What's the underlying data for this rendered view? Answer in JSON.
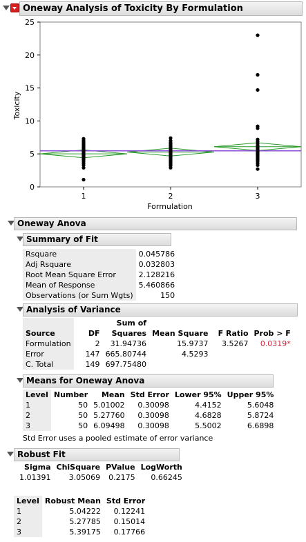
{
  "main_header": {
    "title": "Oneway Analysis of Toxicity By Formulation"
  },
  "chart_data": {
    "type": "scatter",
    "x_categories": [
      "1",
      "2",
      "3"
    ],
    "xlabel": "Formulation",
    "ylabel": "Toxicity",
    "y_ticks": [
      "0",
      "5",
      "10",
      "15",
      "20",
      "25"
    ],
    "ylim": [
      0,
      25
    ],
    "grand_mean": 5.460866,
    "groups": [
      {
        "name": "1",
        "mean": 5.01002,
        "lower95": 4.4152,
        "upper95": 5.6048,
        "points": [
          1.1,
          2.9,
          3.3,
          3.6,
          3.9,
          4.1,
          4.3,
          4.5,
          4.6,
          4.7,
          4.8,
          4.9,
          5.0,
          5.1,
          5.2,
          5.3,
          5.4,
          5.5,
          5.6,
          5.7,
          5.9,
          6.0,
          6.2,
          6.4,
          6.6,
          6.8,
          7.0,
          7.3
        ]
      },
      {
        "name": "2",
        "mean": 5.2776,
        "lower95": 4.6828,
        "upper95": 5.8724,
        "points": [
          2.9,
          3.2,
          3.4,
          3.6,
          3.8,
          4.0,
          4.2,
          4.4,
          4.5,
          4.6,
          4.7,
          4.8,
          4.9,
          5.0,
          5.1,
          5.2,
          5.3,
          5.4,
          5.5,
          5.6,
          5.7,
          5.8,
          5.9,
          6.1,
          6.3,
          6.5,
          6.7,
          7.0,
          7.4
        ]
      },
      {
        "name": "3",
        "mean": 6.09498,
        "lower95": 5.5002,
        "upper95": 6.6898,
        "points": [
          2.7,
          3.3,
          3.6,
          3.9,
          4.1,
          4.3,
          4.5,
          4.7,
          4.9,
          5.0,
          5.1,
          5.2,
          5.3,
          5.4,
          5.5,
          5.6,
          5.7,
          5.8,
          5.9,
          6.1,
          6.3,
          6.6,
          6.9,
          7.2,
          8.9,
          9.2,
          14.7,
          17.0,
          23.0
        ]
      }
    ]
  },
  "oneway_anova": {
    "title": "Oneway Anova"
  },
  "summary_of_fit": {
    "title": "Summary of Fit",
    "rows": [
      {
        "label": "Rsquare",
        "value": "0.045786"
      },
      {
        "label": "Adj Rsquare",
        "value": "0.032803"
      },
      {
        "label": "Root Mean Square Error",
        "value": "2.128216"
      },
      {
        "label": "Mean of Response",
        "value": "5.460866"
      },
      {
        "label": "Observations (or Sum Wgts)",
        "value": "150"
      }
    ]
  },
  "analysis_of_variance": {
    "title": "Analysis of Variance",
    "headers": {
      "source": "Source",
      "df": "DF",
      "ss_top": "Sum of",
      "ss_bottom": "Squares",
      "ms": "Mean Square",
      "f": "F Ratio",
      "p": "Prob > F"
    },
    "rows": [
      {
        "source": "Formulation",
        "df": "2",
        "ss": "31.94736",
        "ms": "15.9737",
        "f": "3.5267",
        "p": "0.0319*"
      },
      {
        "source": "Error",
        "df": "147",
        "ss": "665.80744",
        "ms": "4.5293",
        "f": "",
        "p": ""
      },
      {
        "source": "C. Total",
        "df": "149",
        "ss": "697.75480",
        "ms": "",
        "f": "",
        "p": ""
      }
    ]
  },
  "means": {
    "title": "Means for Oneway Anova",
    "headers": {
      "level": "Level",
      "number": "Number",
      "mean": "Mean",
      "se": "Std Error",
      "lower": "Lower 95%",
      "upper": "Upper 95%"
    },
    "rows": [
      {
        "level": "1",
        "number": "50",
        "mean": "5.01002",
        "se": "0.30098",
        "lower": "4.4152",
        "upper": "5.6048"
      },
      {
        "level": "2",
        "number": "50",
        "mean": "5.27760",
        "se": "0.30098",
        "lower": "4.6828",
        "upper": "5.8724"
      },
      {
        "level": "3",
        "number": "50",
        "mean": "6.09498",
        "se": "0.30098",
        "lower": "5.5002",
        "upper": "6.6898"
      }
    ],
    "note": "Std Error uses a pooled estimate of error variance"
  },
  "robust_fit": {
    "title": "Robust Fit",
    "stats_headers": {
      "sigma": "Sigma",
      "chisq": "ChiSquare",
      "pvalue": "PValue",
      "logworth": "LogWorth"
    },
    "stats": {
      "sigma": "1.01391",
      "chisq": "3.05069",
      "pvalue": "0.2175",
      "logworth": "0.66245"
    },
    "level_headers": {
      "level": "Level",
      "mean": "Robust Mean",
      "se": "Std Error"
    },
    "levels": [
      {
        "level": "1",
        "mean": "5.04222",
        "se": "0.12241"
      },
      {
        "level": "2",
        "mean": "5.27785",
        "se": "0.15014"
      },
      {
        "level": "3",
        "mean": "5.39175",
        "se": "0.17766"
      }
    ]
  }
}
